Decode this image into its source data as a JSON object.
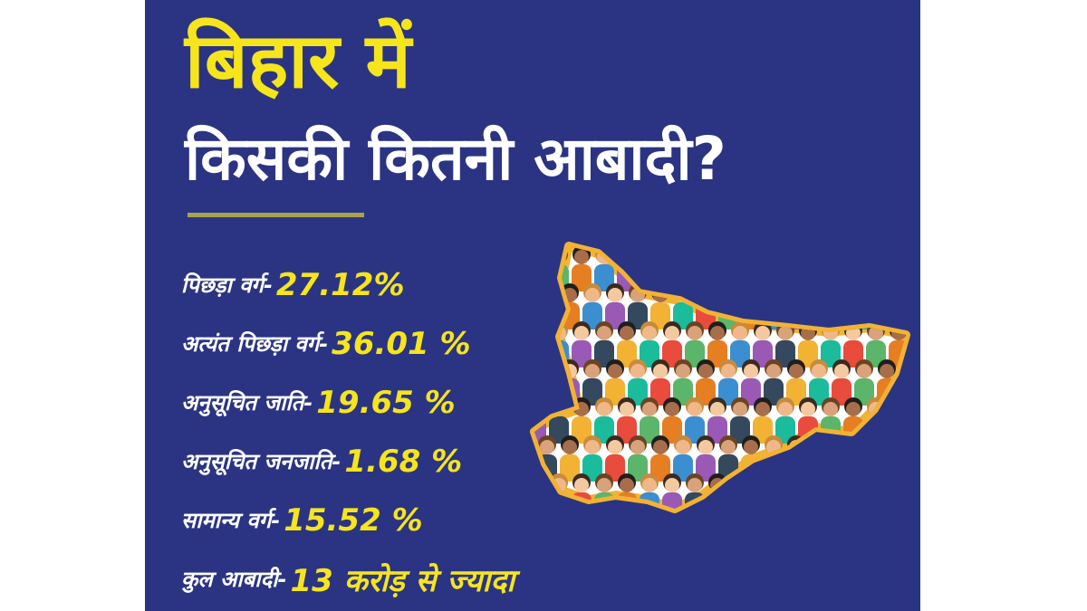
{
  "header": {
    "title_line1": "बिहार में",
    "title_line2": "किसकी कितनी आबादी?"
  },
  "rows": [
    {
      "label": "पिछड़ा वर्ग-",
      "value": "27.12%"
    },
    {
      "label": "अत्यंत पिछड़ा वर्ग-",
      "value": "36.01 %"
    },
    {
      "label": "अनुसूचित जाति-",
      "value": "19.65 %"
    },
    {
      "label": "अनुसूचित जनजाति-",
      "value": "1.68 %"
    },
    {
      "label": "सामान्य वर्ग-",
      "value": "15.52 %"
    },
    {
      "label": "कुल आबादी-",
      "value": "13 करोड़ से ज्यादा"
    }
  ]
}
